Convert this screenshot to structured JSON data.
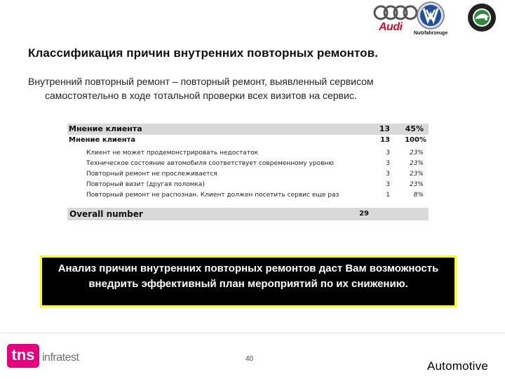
{
  "logos": {
    "audi_text": "Audi",
    "vw_text": "Nutzfahrzeuge"
  },
  "title": "Классификация причин внутренних повторных ремонтов.",
  "intro": {
    "line1": "Внутренний повторный ремонт – повторный ремонт, выявленный сервисом",
    "line2": "самостоятельно в ходе тотальной проверки всех визитов на сервис."
  },
  "table": {
    "header": {
      "label": "Мнение клиента",
      "count": "13",
      "percent": "45%"
    },
    "subheader": {
      "label": "Мнение клиента",
      "count": "13",
      "percent": "100%"
    },
    "rows": [
      {
        "label": "Клиент не может продемонстрировать недостаток",
        "count": "3",
        "percent": "23%"
      },
      {
        "label": "Техническое состояние автомобиля соответствует современному уровню",
        "count": "3",
        "percent": "23%"
      },
      {
        "label": "Повторный ремонт не прослеживается",
        "count": "3",
        "percent": "23%"
      },
      {
        "label": "Повторный визит (другая поломка)",
        "count": "3",
        "percent": "23%"
      },
      {
        "label": "Повторный ремонт не распознан. Клиент должен посетить сервис еще раз",
        "count": "1",
        "percent": "8%"
      }
    ],
    "total": {
      "label": "Overall number",
      "count": "29"
    }
  },
  "callout": "Анализ причин внутренних повторных ремонтов даст Вам возможность внедрить эффективный план мероприятий по их снижению.",
  "footer": {
    "brand_box": "tns",
    "brand_sub": "infratest",
    "page_number": "40",
    "section": "Automotive"
  }
}
